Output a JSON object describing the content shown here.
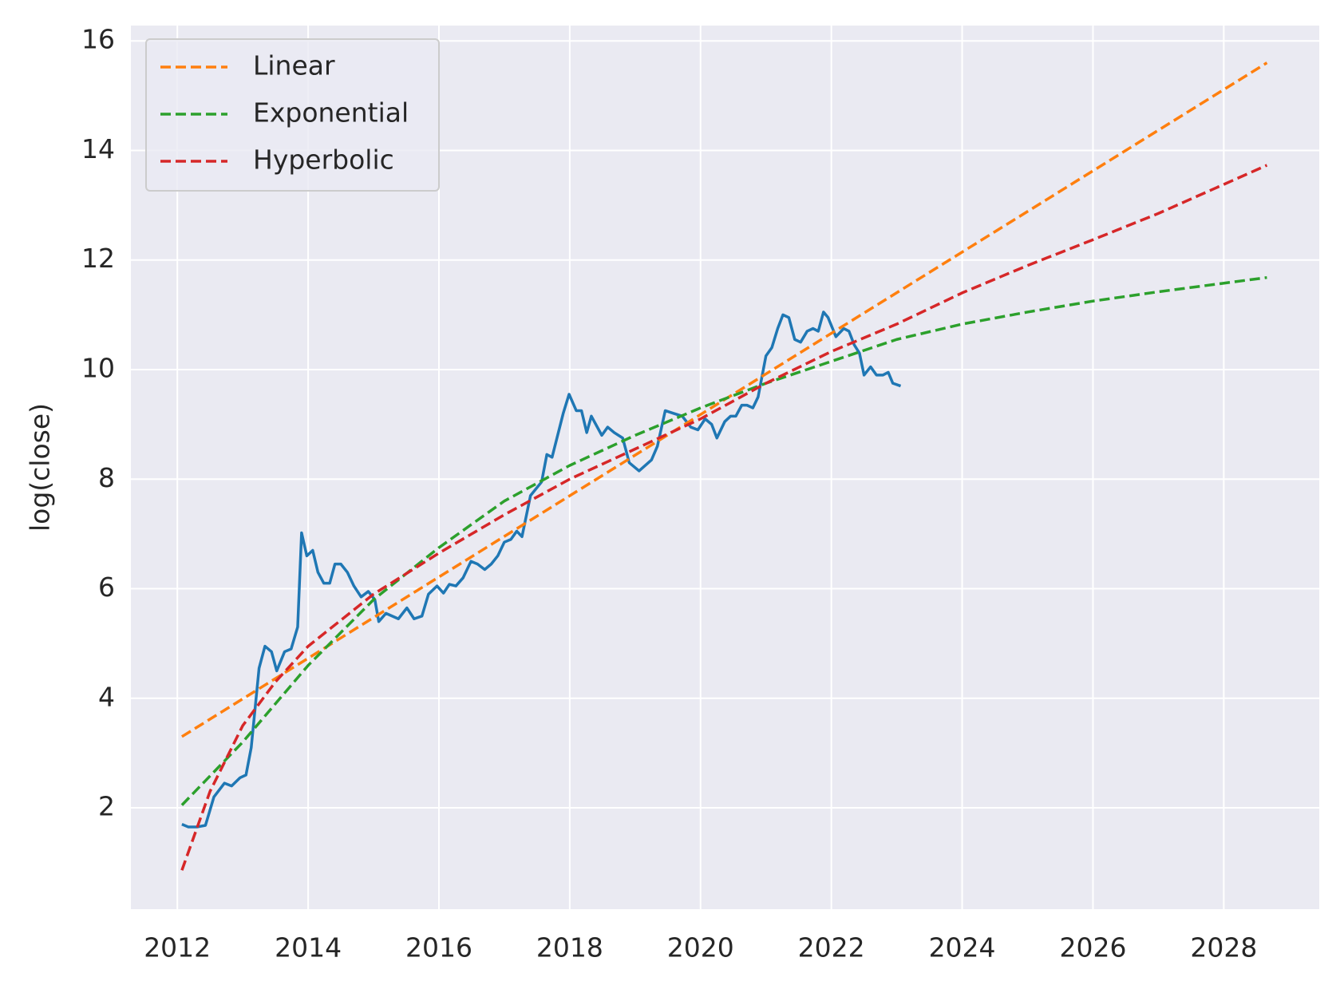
{
  "chart_data": {
    "type": "line",
    "ylabel": "log(close)",
    "xlim": [
      2011.29,
      2029.46
    ],
    "ylim": [
      0.15,
      16.28
    ],
    "xticks": [
      2012,
      2014,
      2016,
      2018,
      2020,
      2022,
      2024,
      2026,
      2028
    ],
    "yticks": [
      2,
      4,
      6,
      8,
      10,
      12,
      14,
      16
    ],
    "grid": true,
    "legend": "upper left",
    "series": [
      {
        "color": "#1f77b4",
        "linestyle": "solid",
        "x": [
          2012.07,
          2012.17,
          2012.3,
          2012.43,
          2012.56,
          2012.72,
          2012.83,
          2012.96,
          2013.05,
          2013.13,
          2013.25,
          2013.34,
          2013.44,
          2013.52,
          2013.64,
          2013.74,
          2013.84,
          2013.9,
          2013.98,
          2014.07,
          2014.15,
          2014.24,
          2014.33,
          2014.41,
          2014.5,
          2014.6,
          2014.7,
          2014.81,
          2014.92,
          2015.02,
          2015.08,
          2015.19,
          2015.38,
          2015.51,
          2015.62,
          2015.74,
          2015.84,
          2015.97,
          2016.07,
          2016.16,
          2016.26,
          2016.37,
          2016.49,
          2016.59,
          2016.7,
          2016.8,
          2016.9,
          2017.0,
          2017.1,
          2017.19,
          2017.27,
          2017.4,
          2017.57,
          2017.65,
          2017.73,
          2017.9,
          2017.99,
          2018.1,
          2018.18,
          2018.26,
          2018.33,
          2018.49,
          2018.58,
          2018.68,
          2018.81,
          2018.91,
          2019.06,
          2019.25,
          2019.34,
          2019.46,
          2019.59,
          2019.72,
          2019.85,
          2019.96,
          2020.07,
          2020.17,
          2020.25,
          2020.37,
          2020.46,
          2020.54,
          2020.63,
          2020.71,
          2020.8,
          2020.88,
          2021.0,
          2021.09,
          2021.18,
          2021.26,
          2021.35,
          2021.44,
          2021.53,
          2021.63,
          2021.72,
          2021.8,
          2021.88,
          2021.95,
          2022.07,
          2022.19,
          2022.27,
          2022.35,
          2022.43,
          2022.5,
          2022.6,
          2022.69,
          2022.79,
          2022.87,
          2022.94,
          2023.06
        ],
        "values": [
          1.7,
          1.65,
          1.65,
          1.68,
          2.2,
          2.45,
          2.4,
          2.55,
          2.6,
          3.1,
          4.55,
          4.95,
          4.85,
          4.5,
          4.85,
          4.9,
          5.3,
          7.02,
          6.6,
          6.7,
          6.3,
          6.1,
          6.1,
          6.45,
          6.45,
          6.3,
          6.05,
          5.85,
          5.95,
          5.8,
          5.4,
          5.55,
          5.45,
          5.65,
          5.45,
          5.5,
          5.9,
          6.05,
          5.92,
          6.08,
          6.05,
          6.2,
          6.5,
          6.45,
          6.35,
          6.45,
          6.6,
          6.85,
          6.9,
          7.05,
          6.95,
          7.7,
          7.95,
          8.45,
          8.4,
          9.2,
          9.55,
          9.25,
          9.25,
          8.85,
          9.15,
          8.8,
          8.95,
          8.85,
          8.75,
          8.3,
          8.15,
          8.35,
          8.6,
          9.25,
          9.2,
          9.15,
          8.95,
          8.9,
          9.1,
          9.0,
          8.75,
          9.05,
          9.15,
          9.15,
          9.35,
          9.35,
          9.3,
          9.5,
          10.25,
          10.4,
          10.75,
          11.0,
          10.95,
          10.55,
          10.5,
          10.7,
          10.75,
          10.7,
          11.05,
          10.95,
          10.6,
          10.75,
          10.7,
          10.45,
          10.3,
          9.9,
          10.05,
          9.9,
          9.9,
          9.95,
          9.75,
          9.7
        ]
      },
      {
        "name": "Linear",
        "color": "#ff7f0e",
        "linestyle": "dashed",
        "x": [
          2012.07,
          2028.66
        ],
        "values": [
          3.3,
          15.6
        ]
      },
      {
        "name": "Exponential",
        "color": "#2ca02c",
        "linestyle": "dashed",
        "x": [
          2012.07,
          2013,
          2014,
          2015,
          2016,
          2017,
          2018,
          2019,
          2020,
          2021,
          2022,
          2023,
          2024,
          2025,
          2026,
          2027,
          2028.66
        ],
        "values": [
          2.05,
          3.2,
          4.6,
          5.8,
          6.75,
          7.6,
          8.25,
          8.8,
          9.3,
          9.75,
          10.15,
          10.55,
          10.83,
          11.05,
          11.25,
          11.42,
          11.68
        ]
      },
      {
        "name": "Hyperbolic",
        "color": "#d62728",
        "linestyle": "dashed",
        "x": [
          2012.07,
          2012.5,
          2013,
          2013.5,
          2014,
          2015,
          2016,
          2017,
          2018,
          2019,
          2020,
          2021,
          2022,
          2023,
          2024,
          2025,
          2026,
          2027,
          2028.66
        ],
        "values": [
          0.86,
          2.3,
          3.5,
          4.3,
          4.95,
          5.9,
          6.65,
          7.35,
          8.0,
          8.55,
          9.1,
          9.75,
          10.33,
          10.83,
          11.4,
          11.9,
          12.37,
          12.85,
          13.73
        ]
      }
    ]
  }
}
